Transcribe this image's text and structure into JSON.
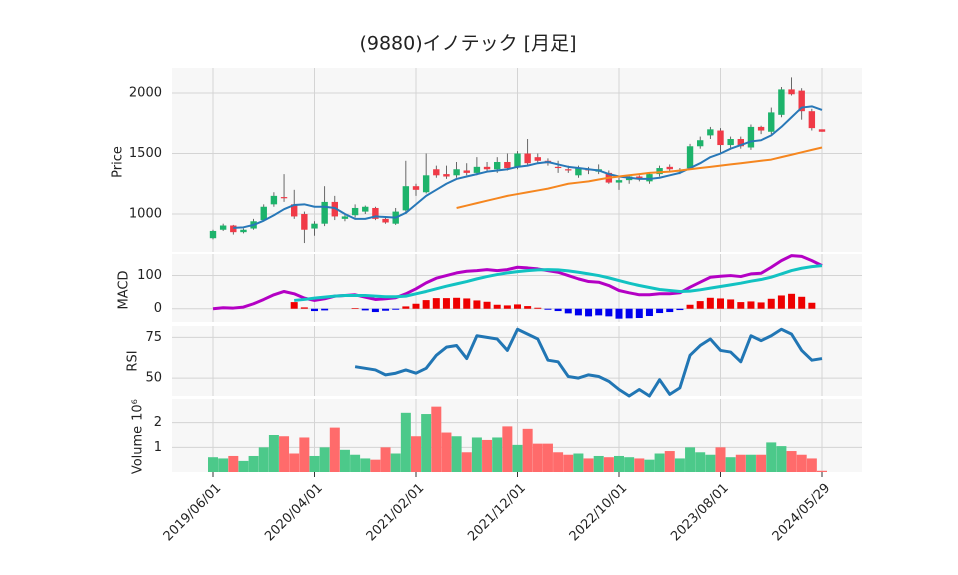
{
  "chart_data": {
    "type": "candlestick",
    "title": "(9880)イノテック [月足]",
    "x": [
      "2019/06/01",
      "2019/07/01",
      "2019/08/01",
      "2019/09/01",
      "2019/10/01",
      "2019/11/01",
      "2019/12/01",
      "2020/01/01",
      "2020/02/01",
      "2020/03/01",
      "2020/04/01",
      "2020/05/01",
      "2020/06/01",
      "2020/07/01",
      "2020/08/01",
      "2020/09/01",
      "2020/10/01",
      "2020/11/01",
      "2020/12/01",
      "2021/01/01",
      "2021/02/01",
      "2021/03/01",
      "2021/04/01",
      "2021/05/01",
      "2021/06/01",
      "2021/07/01",
      "2021/08/01",
      "2021/09/01",
      "2021/10/01",
      "2021/11/01",
      "2021/12/01",
      "2022/01/01",
      "2022/02/01",
      "2022/03/01",
      "2022/04/01",
      "2022/05/01",
      "2022/06/01",
      "2022/07/01",
      "2022/08/01",
      "2022/09/01",
      "2022/10/01",
      "2022/11/01",
      "2022/12/01",
      "2023/01/01",
      "2023/02/01",
      "2023/03/01",
      "2023/04/01",
      "2023/05/01",
      "2023/06/01",
      "2023/07/01",
      "2023/08/01",
      "2023/09/01",
      "2023/10/01",
      "2023/11/01",
      "2023/12/01",
      "2024/01/01",
      "2024/02/01",
      "2024/03/01",
      "2024/04/01",
      "2024/05/01",
      "2024/05/29"
    ],
    "xticks": [
      "2019/06/01",
      "2020/04/01",
      "2021/02/01",
      "2021/12/01",
      "2022/10/01",
      "2023/08/01",
      "2024/05/29"
    ],
    "open": [
      800,
      870,
      905,
      850,
      880,
      950,
      1080,
      1140,
      1080,
      1000,
      880,
      920,
      1100,
      960,
      990,
      1020,
      1050,
      960,
      920,
      1030,
      1230,
      1180,
      1370,
      1330,
      1320,
      1360,
      1340,
      1390,
      1370,
      1430,
      1390,
      1500,
      1470,
      1440,
      1390,
      1370,
      1320,
      1370,
      1350,
      1340,
      1260,
      1280,
      1310,
      1270,
      1330,
      1390,
      1350,
      1380,
      1560,
      1650,
      1690,
      1570,
      1620,
      1550,
      1720,
      1680,
      1820,
      2030,
      2020,
      1850,
      1700
    ],
    "high": [
      870,
      920,
      910,
      880,
      960,
      1080,
      1180,
      1330,
      1200,
      1020,
      940,
      1230,
      1150,
      1000,
      1080,
      1070,
      1060,
      980,
      1050,
      1440,
      1250,
      1500,
      1400,
      1400,
      1430,
      1420,
      1470,
      1430,
      1470,
      1500,
      1520,
      1620,
      1500,
      1460,
      1440,
      1400,
      1400,
      1390,
      1410,
      1360,
      1300,
      1320,
      1320,
      1340,
      1400,
      1410,
      1380,
      1580,
      1640,
      1720,
      1710,
      1640,
      1640,
      1740,
      1730,
      1880,
      2050,
      2130,
      2040,
      1870,
      1700
    ],
    "low": [
      790,
      860,
      830,
      840,
      870,
      940,
      1060,
      1100,
      960,
      760,
      820,
      900,
      950,
      940,
      970,
      1000,
      950,
      920,
      910,
      1000,
      1150,
      1170,
      1300,
      1290,
      1300,
      1320,
      1320,
      1350,
      1340,
      1360,
      1370,
      1400,
      1420,
      1400,
      1340,
      1340,
      1300,
      1330,
      1330,
      1250,
      1200,
      1250,
      1270,
      1250,
      1310,
      1350,
      1330,
      1370,
      1540,
      1620,
      1500,
      1540,
      1540,
      1530,
      1660,
      1660,
      1800,
      1980,
      1780,
      1690,
      1680
    ],
    "close": [
      860,
      905,
      850,
      870,
      940,
      1060,
      1150,
      1130,
      980,
      870,
      920,
      1100,
      980,
      980,
      1050,
      1060,
      960,
      930,
      1020,
      1230,
      1200,
      1320,
      1320,
      1310,
      1370,
      1340,
      1390,
      1370,
      1430,
      1380,
      1500,
      1420,
      1440,
      1420,
      1380,
      1360,
      1380,
      1360,
      1370,
      1260,
      1280,
      1310,
      1290,
      1330,
      1380,
      1370,
      1360,
      1560,
      1610,
      1700,
      1570,
      1620,
      1560,
      1720,
      1690,
      1840,
      2030,
      1990,
      1850,
      1710,
      1680
    ],
    "up_color": "#1db36b",
    "down_color": "#f03a47",
    "ylabel": "Price",
    "ylim": [
      686,
      2207
    ],
    "yticks": [
      1000,
      1500,
      2000
    ],
    "grid": true,
    "moving_averages": [
      {
        "color": "#2878b8",
        "values": [
          null,
          null,
          885,
          890,
          910,
          945,
          990,
          1040,
          1075,
          1080,
          1060,
          1060,
          1050,
          1000,
          960,
          960,
          980,
          975,
          970,
          1010,
          1080,
          1150,
          1200,
          1250,
          1290,
          1310,
          1330,
          1350,
          1360,
          1370,
          1390,
          1400,
          1420,
          1430,
          1410,
          1390,
          1380,
          1370,
          1360,
          1330,
          1310,
          1300,
          1290,
          1290,
          1300,
          1320,
          1340,
          1380,
          1420,
          1470,
          1500,
          1540,
          1570,
          1600,
          1610,
          1650,
          1720,
          1800,
          1880,
          1890,
          1860
        ]
      },
      {
        "color": "#f5861f",
        "values": [
          null,
          null,
          null,
          null,
          null,
          null,
          null,
          null,
          null,
          null,
          null,
          null,
          null,
          null,
          null,
          null,
          null,
          null,
          null,
          null,
          null,
          null,
          null,
          null,
          1050,
          1070,
          1090,
          1110,
          1130,
          1150,
          1165,
          1180,
          1195,
          1210,
          1230,
          1250,
          1260,
          1270,
          1285,
          1300,
          1310,
          1320,
          1330,
          1340,
          1345,
          1350,
          1360,
          1370,
          1380,
          1390,
          1400,
          1410,
          1420,
          1430,
          1440,
          1450,
          1470,
          1490,
          1510,
          1530,
          1550
        ]
      }
    ],
    "macd_panel": {
      "ylabel": "MACD",
      "ylim": [
        -40,
        165
      ],
      "yticks": [
        0,
        100
      ],
      "macd": {
        "color": "#b400c4",
        "values": [
          0,
          3,
          2,
          5,
          15,
          28,
          42,
          52,
          45,
          32,
          25,
          30,
          38,
          40,
          42,
          35,
          28,
          30,
          33,
          45,
          60,
          78,
          92,
          100,
          108,
          113,
          115,
          118,
          115,
          118,
          125,
          123,
          120,
          115,
          110,
          100,
          90,
          82,
          80,
          70,
          55,
          48,
          42,
          42,
          45,
          45,
          48,
          65,
          80,
          95,
          98,
          100,
          97,
          105,
          107,
          125,
          145,
          160,
          158,
          145,
          130
        ]
      },
      "signal": {
        "color": "#12c2c2",
        "values": [
          null,
          null,
          null,
          null,
          null,
          null,
          null,
          null,
          25,
          28,
          32,
          35,
          38,
          40,
          40,
          40,
          38,
          36,
          36,
          38,
          45,
          52,
          60,
          68,
          75,
          82,
          90,
          97,
          103,
          108,
          112,
          115,
          117,
          118,
          117,
          114,
          110,
          105,
          100,
          93,
          85,
          77,
          70,
          64,
          58,
          55,
          52,
          53,
          57,
          62,
          67,
          72,
          77,
          83,
          88,
          95,
          105,
          115,
          122,
          127,
          130
        ]
      },
      "histogram": {
        "positive_color": "#ee0000",
        "negative_color": "#0000ee",
        "values": [
          null,
          null,
          null,
          null,
          null,
          null,
          null,
          null,
          20,
          4,
          -7,
          -5,
          0,
          0,
          2,
          -5,
          -10,
          -6,
          -3,
          7,
          15,
          26,
          32,
          32,
          33,
          31,
          25,
          21,
          12,
          10,
          13,
          8,
          3,
          -3,
          -7,
          -14,
          -20,
          -23,
          -20,
          -23,
          -30,
          -29,
          -28,
          -22,
          -13,
          -10,
          -4,
          12,
          23,
          33,
          31,
          28,
          20,
          22,
          19,
          30,
          40,
          45,
          36,
          18,
          0
        ]
      }
    },
    "rsi_panel": {
      "ylabel": "RSI",
      "ylim": [
        39,
        82
      ],
      "yticks": [
        50,
        75
      ],
      "color": "#2176b4",
      "values": [
        null,
        null,
        null,
        null,
        null,
        null,
        null,
        null,
        null,
        null,
        null,
        null,
        null,
        null,
        57,
        56,
        55,
        52,
        53,
        55,
        53,
        56,
        64,
        69,
        70,
        62,
        76,
        75,
        74,
        67,
        80,
        77,
        74,
        61,
        60,
        51,
        50,
        52,
        51,
        48,
        43,
        39,
        43,
        39,
        49,
        40,
        44,
        64,
        70,
        74,
        67,
        66,
        60,
        76,
        73,
        76,
        80,
        77,
        67,
        61,
        62
      ]
    },
    "volume_panel": {
      "ylabel": "Volume",
      "scale_label": "10⁶",
      "ylim": [
        0,
        2.96
      ],
      "yticks": [
        1,
        2
      ],
      "up_color": "#4cc98a",
      "down_color": "#ff6b6b",
      "values": [
        0.6,
        0.55,
        0.65,
        0.45,
        0.65,
        1.0,
        1.5,
        1.45,
        0.75,
        1.4,
        0.65,
        1.0,
        1.8,
        0.9,
        0.7,
        0.55,
        0.5,
        1.0,
        0.75,
        2.4,
        1.45,
        2.35,
        2.65,
        1.6,
        1.45,
        0.8,
        1.4,
        1.3,
        1.4,
        1.85,
        1.1,
        1.75,
        1.15,
        1.15,
        0.8,
        0.7,
        0.75,
        0.55,
        0.65,
        0.6,
        0.65,
        0.6,
        0.55,
        0.5,
        0.75,
        0.85,
        0.55,
        1.0,
        0.8,
        0.7,
        1.0,
        0.6,
        0.7,
        0.7,
        0.7,
        1.2,
        1.05,
        0.85,
        0.7,
        0.55,
        0.05
      ]
    }
  }
}
